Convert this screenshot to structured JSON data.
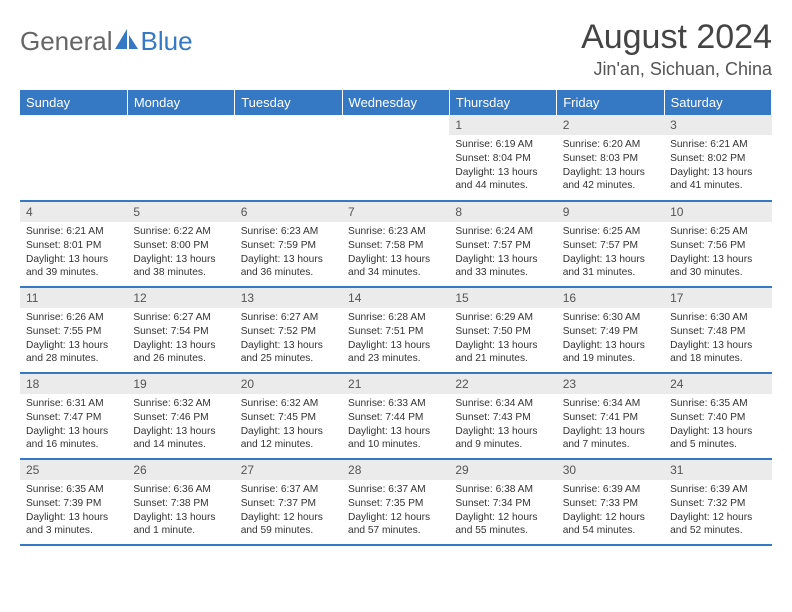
{
  "logo": {
    "text1": "General",
    "text2": "Blue"
  },
  "title": "August 2024",
  "location": "Jin'an, Sichuan, China",
  "columns": [
    "Sunday",
    "Monday",
    "Tuesday",
    "Wednesday",
    "Thursday",
    "Friday",
    "Saturday"
  ],
  "colors": {
    "header_bg": "#3578c4",
    "header_fg": "#ffffff",
    "daynum_bg": "#ebebeb",
    "border": "#3578c4",
    "logo_blue": "#3578c4",
    "logo_gray": "#666666"
  },
  "weeks": [
    [
      {
        "n": "",
        "sr": "",
        "ss": "",
        "dl": ""
      },
      {
        "n": "",
        "sr": "",
        "ss": "",
        "dl": ""
      },
      {
        "n": "",
        "sr": "",
        "ss": "",
        "dl": ""
      },
      {
        "n": "",
        "sr": "",
        "ss": "",
        "dl": ""
      },
      {
        "n": "1",
        "sr": "Sunrise: 6:19 AM",
        "ss": "Sunset: 8:04 PM",
        "dl": "Daylight: 13 hours and 44 minutes."
      },
      {
        "n": "2",
        "sr": "Sunrise: 6:20 AM",
        "ss": "Sunset: 8:03 PM",
        "dl": "Daylight: 13 hours and 42 minutes."
      },
      {
        "n": "3",
        "sr": "Sunrise: 6:21 AM",
        "ss": "Sunset: 8:02 PM",
        "dl": "Daylight: 13 hours and 41 minutes."
      }
    ],
    [
      {
        "n": "4",
        "sr": "Sunrise: 6:21 AM",
        "ss": "Sunset: 8:01 PM",
        "dl": "Daylight: 13 hours and 39 minutes."
      },
      {
        "n": "5",
        "sr": "Sunrise: 6:22 AM",
        "ss": "Sunset: 8:00 PM",
        "dl": "Daylight: 13 hours and 38 minutes."
      },
      {
        "n": "6",
        "sr": "Sunrise: 6:23 AM",
        "ss": "Sunset: 7:59 PM",
        "dl": "Daylight: 13 hours and 36 minutes."
      },
      {
        "n": "7",
        "sr": "Sunrise: 6:23 AM",
        "ss": "Sunset: 7:58 PM",
        "dl": "Daylight: 13 hours and 34 minutes."
      },
      {
        "n": "8",
        "sr": "Sunrise: 6:24 AM",
        "ss": "Sunset: 7:57 PM",
        "dl": "Daylight: 13 hours and 33 minutes."
      },
      {
        "n": "9",
        "sr": "Sunrise: 6:25 AM",
        "ss": "Sunset: 7:57 PM",
        "dl": "Daylight: 13 hours and 31 minutes."
      },
      {
        "n": "10",
        "sr": "Sunrise: 6:25 AM",
        "ss": "Sunset: 7:56 PM",
        "dl": "Daylight: 13 hours and 30 minutes."
      }
    ],
    [
      {
        "n": "11",
        "sr": "Sunrise: 6:26 AM",
        "ss": "Sunset: 7:55 PM",
        "dl": "Daylight: 13 hours and 28 minutes."
      },
      {
        "n": "12",
        "sr": "Sunrise: 6:27 AM",
        "ss": "Sunset: 7:54 PM",
        "dl": "Daylight: 13 hours and 26 minutes."
      },
      {
        "n": "13",
        "sr": "Sunrise: 6:27 AM",
        "ss": "Sunset: 7:52 PM",
        "dl": "Daylight: 13 hours and 25 minutes."
      },
      {
        "n": "14",
        "sr": "Sunrise: 6:28 AM",
        "ss": "Sunset: 7:51 PM",
        "dl": "Daylight: 13 hours and 23 minutes."
      },
      {
        "n": "15",
        "sr": "Sunrise: 6:29 AM",
        "ss": "Sunset: 7:50 PM",
        "dl": "Daylight: 13 hours and 21 minutes."
      },
      {
        "n": "16",
        "sr": "Sunrise: 6:30 AM",
        "ss": "Sunset: 7:49 PM",
        "dl": "Daylight: 13 hours and 19 minutes."
      },
      {
        "n": "17",
        "sr": "Sunrise: 6:30 AM",
        "ss": "Sunset: 7:48 PM",
        "dl": "Daylight: 13 hours and 18 minutes."
      }
    ],
    [
      {
        "n": "18",
        "sr": "Sunrise: 6:31 AM",
        "ss": "Sunset: 7:47 PM",
        "dl": "Daylight: 13 hours and 16 minutes."
      },
      {
        "n": "19",
        "sr": "Sunrise: 6:32 AM",
        "ss": "Sunset: 7:46 PM",
        "dl": "Daylight: 13 hours and 14 minutes."
      },
      {
        "n": "20",
        "sr": "Sunrise: 6:32 AM",
        "ss": "Sunset: 7:45 PM",
        "dl": "Daylight: 13 hours and 12 minutes."
      },
      {
        "n": "21",
        "sr": "Sunrise: 6:33 AM",
        "ss": "Sunset: 7:44 PM",
        "dl": "Daylight: 13 hours and 10 minutes."
      },
      {
        "n": "22",
        "sr": "Sunrise: 6:34 AM",
        "ss": "Sunset: 7:43 PM",
        "dl": "Daylight: 13 hours and 9 minutes."
      },
      {
        "n": "23",
        "sr": "Sunrise: 6:34 AM",
        "ss": "Sunset: 7:41 PM",
        "dl": "Daylight: 13 hours and 7 minutes."
      },
      {
        "n": "24",
        "sr": "Sunrise: 6:35 AM",
        "ss": "Sunset: 7:40 PM",
        "dl": "Daylight: 13 hours and 5 minutes."
      }
    ],
    [
      {
        "n": "25",
        "sr": "Sunrise: 6:35 AM",
        "ss": "Sunset: 7:39 PM",
        "dl": "Daylight: 13 hours and 3 minutes."
      },
      {
        "n": "26",
        "sr": "Sunrise: 6:36 AM",
        "ss": "Sunset: 7:38 PM",
        "dl": "Daylight: 13 hours and 1 minute."
      },
      {
        "n": "27",
        "sr": "Sunrise: 6:37 AM",
        "ss": "Sunset: 7:37 PM",
        "dl": "Daylight: 12 hours and 59 minutes."
      },
      {
        "n": "28",
        "sr": "Sunrise: 6:37 AM",
        "ss": "Sunset: 7:35 PM",
        "dl": "Daylight: 12 hours and 57 minutes."
      },
      {
        "n": "29",
        "sr": "Sunrise: 6:38 AM",
        "ss": "Sunset: 7:34 PM",
        "dl": "Daylight: 12 hours and 55 minutes."
      },
      {
        "n": "30",
        "sr": "Sunrise: 6:39 AM",
        "ss": "Sunset: 7:33 PM",
        "dl": "Daylight: 12 hours and 54 minutes."
      },
      {
        "n": "31",
        "sr": "Sunrise: 6:39 AM",
        "ss": "Sunset: 7:32 PM",
        "dl": "Daylight: 12 hours and 52 minutes."
      }
    ]
  ]
}
